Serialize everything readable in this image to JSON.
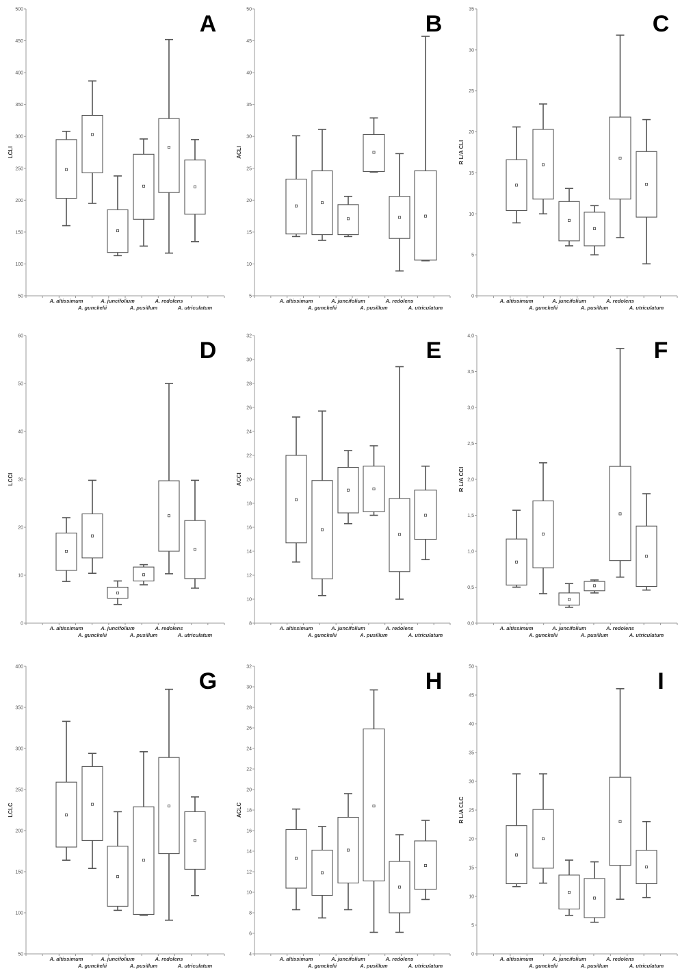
{
  "figure": {
    "species": [
      "A. altissimum",
      "A. gunckelii",
      "A. juncifolium",
      "A. pusillum",
      "A. redolens",
      "A. utriculatum"
    ],
    "colors": {
      "box_stroke": "#555555",
      "whisker": "#555555",
      "axis": "#999999",
      "panel_letter": "#000000"
    }
  },
  "chart_data": [
    {
      "panel": "A",
      "type": "box",
      "ylabel": "LCLI",
      "ylim": [
        50,
        500
      ],
      "ystep": 50,
      "yticks": [
        "50",
        "100",
        "150",
        "200",
        "250",
        "300",
        "350",
        "400",
        "450",
        "500"
      ],
      "boxes": [
        {
          "category": "A. altissimum",
          "min": 160,
          "q1": 203,
          "median": 248,
          "q3": 295,
          "max": 308
        },
        {
          "category": "A. gunckelii",
          "min": 195,
          "q1": 243,
          "median": 303,
          "q3": 333,
          "max": 387
        },
        {
          "category": "A. juncifolium",
          "min": 113,
          "q1": 118,
          "median": 152,
          "q3": 185,
          "max": 238
        },
        {
          "category": "A. pusillum",
          "min": 128,
          "q1": 170,
          "median": 222,
          "q3": 272,
          "max": 296
        },
        {
          "category": "A. redolens",
          "min": 117,
          "q1": 212,
          "median": 283,
          "q3": 328,
          "max": 452
        },
        {
          "category": "A. utriculatum",
          "min": 135,
          "q1": 178,
          "median": 221,
          "q3": 263,
          "max": 295
        }
      ]
    },
    {
      "panel": "B",
      "type": "box",
      "ylabel": "ACLI",
      "ylim": [
        5,
        50
      ],
      "ystep": 5,
      "yticks": [
        "5",
        "10",
        "15",
        "20",
        "25",
        "30",
        "35",
        "40",
        "45",
        "50"
      ],
      "boxes": [
        {
          "category": "A. altissimum",
          "min": 14.3,
          "q1": 14.7,
          "median": 19.1,
          "q3": 23.3,
          "max": 30.1
        },
        {
          "category": "A. gunckelii",
          "min": 13.7,
          "q1": 14.6,
          "median": 19.6,
          "q3": 24.6,
          "max": 31.1
        },
        {
          "category": "A. juncifolium",
          "min": 14.3,
          "q1": 14.6,
          "median": 17.1,
          "q3": 19.3,
          "max": 20.6
        },
        {
          "category": "A. pusillum",
          "min": 24.4,
          "q1": 24.5,
          "median": 27.5,
          "q3": 30.3,
          "max": 32.9
        },
        {
          "category": "A. redolens",
          "min": 8.9,
          "q1": 14.0,
          "median": 17.3,
          "q3": 20.6,
          "max": 27.3
        },
        {
          "category": "A. utriculatum",
          "min": 10.5,
          "q1": 10.6,
          "median": 17.5,
          "q3": 24.6,
          "max": 45.7
        }
      ]
    },
    {
      "panel": "C",
      "type": "box",
      "ylabel": "R L/A CLI",
      "ylim": [
        0,
        35
      ],
      "ystep": 5,
      "yticks": [
        "0",
        "5",
        "10",
        "15",
        "20",
        "25",
        "30",
        "35"
      ],
      "boxes": [
        {
          "category": "A. altissimum",
          "min": 8.9,
          "q1": 10.4,
          "median": 13.5,
          "q3": 16.6,
          "max": 20.6
        },
        {
          "category": "A. gunckelii",
          "min": 10.0,
          "q1": 11.8,
          "median": 16.0,
          "q3": 20.3,
          "max": 23.4
        },
        {
          "category": "A. juncifolium",
          "min": 6.1,
          "q1": 6.7,
          "median": 9.2,
          "q3": 11.5,
          "max": 13.1
        },
        {
          "category": "A. pusillum",
          "min": 5.0,
          "q1": 6.1,
          "median": 8.2,
          "q3": 10.2,
          "max": 11.0
        },
        {
          "category": "A. redolens",
          "min": 7.1,
          "q1": 11.8,
          "median": 16.8,
          "q3": 21.8,
          "max": 31.8
        },
        {
          "category": "A. utriculatum",
          "min": 3.9,
          "q1": 9.6,
          "median": 13.6,
          "q3": 17.6,
          "max": 21.5
        }
      ]
    },
    {
      "panel": "D",
      "type": "box",
      "ylabel": "LCCI",
      "ylim": [
        0,
        60
      ],
      "ystep": 10,
      "yticks": [
        "0",
        "10",
        "20",
        "30",
        "40",
        "50",
        "60"
      ],
      "boxes": [
        {
          "category": "A. altissimum",
          "min": 8.7,
          "q1": 11.0,
          "median": 15.0,
          "q3": 18.8,
          "max": 22.0
        },
        {
          "category": "A. gunckelii",
          "min": 10.4,
          "q1": 13.6,
          "median": 18.2,
          "q3": 22.8,
          "max": 29.8
        },
        {
          "category": "A. juncifolium",
          "min": 3.9,
          "q1": 5.2,
          "median": 6.3,
          "q3": 7.5,
          "max": 8.8
        },
        {
          "category": "A. pusillum",
          "min": 8.0,
          "q1": 8.8,
          "median": 10.1,
          "q3": 11.7,
          "max": 12.2
        },
        {
          "category": "A. redolens",
          "min": 10.3,
          "q1": 15.0,
          "median": 22.4,
          "q3": 29.7,
          "max": 50.0
        },
        {
          "category": "A. utriculatum",
          "min": 7.3,
          "q1": 9.3,
          "median": 15.4,
          "q3": 21.4,
          "max": 29.8
        }
      ]
    },
    {
      "panel": "E",
      "type": "box",
      "ylabel": "ACCI",
      "ylim": [
        8,
        32
      ],
      "ystep": 2,
      "yticks": [
        "8",
        "10",
        "12",
        "14",
        "16",
        "18",
        "20",
        "22",
        "24",
        "26",
        "28",
        "30",
        "32"
      ],
      "boxes": [
        {
          "category": "A. altissimum",
          "min": 13.1,
          "q1": 14.7,
          "median": 18.3,
          "q3": 22.0,
          "max": 25.2
        },
        {
          "category": "A. gunckelii",
          "min": 10.3,
          "q1": 11.7,
          "median": 15.8,
          "q3": 19.9,
          "max": 25.7
        },
        {
          "category": "A. juncifolium",
          "min": 16.3,
          "q1": 17.2,
          "median": 19.1,
          "q3": 21.0,
          "max": 22.4
        },
        {
          "category": "A. pusillum",
          "min": 17.0,
          "q1": 17.3,
          "median": 19.2,
          "q3": 21.1,
          "max": 22.8
        },
        {
          "category": "A. redolens",
          "min": 10.0,
          "q1": 12.3,
          "median": 15.4,
          "q3": 18.4,
          "max": 29.4
        },
        {
          "category": "A. utriculatum",
          "min": 13.3,
          "q1": 15.0,
          "median": 17.0,
          "q3": 19.1,
          "max": 21.1
        }
      ]
    },
    {
      "panel": "F",
      "type": "box",
      "ylabel": "R L/A CCI",
      "ylim": [
        0,
        4
      ],
      "ystep": 0.5,
      "yticks": [
        "0,0",
        "0,5",
        "1,0",
        "1,5",
        "2,0",
        "2,5",
        "3,0",
        "3,5",
        "4,0"
      ],
      "boxes": [
        {
          "category": "A. altissimum",
          "min": 0.5,
          "q1": 0.53,
          "median": 0.85,
          "q3": 1.17,
          "max": 1.57
        },
        {
          "category": "A. gunckelii",
          "min": 0.41,
          "q1": 0.77,
          "median": 1.24,
          "q3": 1.7,
          "max": 2.23
        },
        {
          "category": "A. juncifolium",
          "min": 0.22,
          "q1": 0.25,
          "median": 0.33,
          "q3": 0.42,
          "max": 0.55
        },
        {
          "category": "A. pusillum",
          "min": 0.42,
          "q1": 0.45,
          "median": 0.52,
          "q3": 0.58,
          "max": 0.6
        },
        {
          "category": "A. redolens",
          "min": 0.64,
          "q1": 0.87,
          "median": 1.52,
          "q3": 2.18,
          "max": 3.82
        },
        {
          "category": "A. utriculatum",
          "min": 0.46,
          "q1": 0.51,
          "median": 0.93,
          "q3": 1.35,
          "max": 1.8
        }
      ]
    },
    {
      "panel": "G",
      "type": "box",
      "ylabel": "LCLC",
      "ylim": [
        50,
        400
      ],
      "ystep": 50,
      "yticks": [
        "50",
        "100",
        "150",
        "200",
        "250",
        "300",
        "350",
        "400"
      ],
      "boxes": [
        {
          "category": "A. altissimum",
          "min": 164,
          "q1": 180,
          "median": 219,
          "q3": 259,
          "max": 333
        },
        {
          "category": "A. gunckelii",
          "min": 154,
          "q1": 188,
          "median": 232,
          "q3": 278,
          "max": 294
        },
        {
          "category": "A. juncifolium",
          "min": 103,
          "q1": 108,
          "median": 144,
          "q3": 181,
          "max": 223
        },
        {
          "category": "A. pusillum",
          "min": 97,
          "q1": 98,
          "median": 164,
          "q3": 229,
          "max": 296
        },
        {
          "category": "A. redolens",
          "min": 91,
          "q1": 172,
          "median": 230,
          "q3": 289,
          "max": 372
        },
        {
          "category": "A. utriculatum",
          "min": 121,
          "q1": 153,
          "median": 188,
          "q3": 223,
          "max": 241
        }
      ]
    },
    {
      "panel": "H",
      "type": "box",
      "ylabel": "ACLC",
      "ylim": [
        4,
        32
      ],
      "ystep": 2,
      "yticks": [
        "4",
        "6",
        "8",
        "10",
        "12",
        "14",
        "16",
        "18",
        "20",
        "22",
        "24",
        "26",
        "28",
        "30",
        "32"
      ],
      "boxes": [
        {
          "category": "A. altissimum",
          "min": 8.3,
          "q1": 10.4,
          "median": 13.3,
          "q3": 16.1,
          "max": 18.1
        },
        {
          "category": "A. gunckelii",
          "min": 7.5,
          "q1": 9.7,
          "median": 11.9,
          "q3": 14.1,
          "max": 16.4
        },
        {
          "category": "A. juncifolium",
          "min": 8.3,
          "q1": 10.9,
          "median": 14.1,
          "q3": 17.3,
          "max": 19.6
        },
        {
          "category": "A. pusillum",
          "min": 6.1,
          "q1": 11.1,
          "median": 18.4,
          "q3": 25.9,
          "max": 29.7
        },
        {
          "category": "A. redolens",
          "min": 6.1,
          "q1": 8.0,
          "median": 10.5,
          "q3": 13.0,
          "max": 15.6
        },
        {
          "category": "A. utriculatum",
          "min": 9.3,
          "q1": 10.3,
          "median": 12.6,
          "q3": 15.0,
          "max": 17.0
        }
      ]
    },
    {
      "panel": "I",
      "type": "box",
      "ylabel": "R L/A CLC",
      "ylim": [
        0,
        50
      ],
      "ystep": 5,
      "yticks": [
        "0",
        "5",
        "10",
        "15",
        "20",
        "25",
        "30",
        "35",
        "40",
        "45",
        "50"
      ],
      "boxes": [
        {
          "category": "A. altissimum",
          "min": 11.7,
          "q1": 12.2,
          "median": 17.2,
          "q3": 22.3,
          "max": 31.3
        },
        {
          "category": "A. gunckelii",
          "min": 12.3,
          "q1": 14.9,
          "median": 20.0,
          "q3": 25.1,
          "max": 31.3
        },
        {
          "category": "A. juncifolium",
          "min": 6.7,
          "q1": 7.8,
          "median": 10.7,
          "q3": 13.7,
          "max": 16.3
        },
        {
          "category": "A. pusillum",
          "min": 5.5,
          "q1": 6.3,
          "median": 9.7,
          "q3": 13.1,
          "max": 16.0
        },
        {
          "category": "A. redolens",
          "min": 9.5,
          "q1": 15.4,
          "median": 23.0,
          "q3": 30.7,
          "max": 46.1
        },
        {
          "category": "A. utriculatum",
          "min": 9.8,
          "q1": 12.2,
          "median": 15.1,
          "q3": 18.0,
          "max": 23.0
        }
      ]
    }
  ]
}
